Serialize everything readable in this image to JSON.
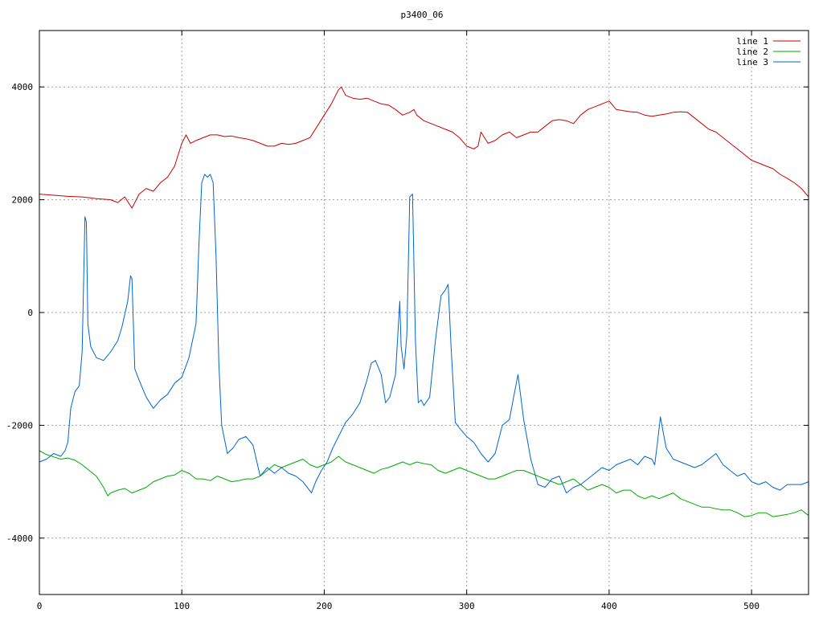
{
  "chart_data": {
    "type": "line",
    "title": "p3400_06",
    "xlabel": "",
    "ylabel": "",
    "xlim": [
      0,
      540
    ],
    "ylim": [
      -5000,
      5000
    ],
    "x_ticks": [
      0,
      100,
      200,
      300,
      400,
      500
    ],
    "y_ticks": [
      -4000,
      -2000,
      0,
      2000,
      4000
    ],
    "x_tick_labels": [
      "0",
      "100",
      "200",
      "300",
      "400",
      "500"
    ],
    "y_tick_labels": [
      "-4000",
      "-2000",
      "0",
      "2000",
      "4000"
    ],
    "grid": true,
    "legend_position": "top-right",
    "series": [
      {
        "name": "line 1",
        "color": "#cc0000",
        "x": [
          0,
          10,
          20,
          30,
          40,
          50,
          55,
          60,
          65,
          70,
          75,
          80,
          85,
          90,
          95,
          100,
          103,
          106,
          110,
          115,
          120,
          125,
          130,
          135,
          140,
          145,
          150,
          155,
          160,
          165,
          170,
          175,
          180,
          185,
          190,
          195,
          200,
          205,
          210,
          212,
          215,
          220,
          225,
          230,
          235,
          240,
          245,
          250,
          255,
          260,
          263,
          265,
          270,
          275,
          280,
          285,
          290,
          295,
          300,
          305,
          308,
          310,
          315,
          320,
          325,
          330,
          335,
          340,
          345,
          350,
          355,
          360,
          365,
          370,
          375,
          380,
          385,
          390,
          395,
          400,
          405,
          410,
          415,
          420,
          425,
          430,
          435,
          440,
          445,
          450,
          455,
          460,
          465,
          470,
          475,
          480,
          485,
          490,
          495,
          500,
          505,
          510,
          515,
          520,
          525,
          530,
          535,
          540
        ],
        "y": [
          2100,
          2080,
          2060,
          2050,
          2020,
          2000,
          1950,
          2050,
          1850,
          2100,
          2200,
          2150,
          2300,
          2400,
          2600,
          3000,
          3150,
          3000,
          3050,
          3100,
          3150,
          3150,
          3120,
          3130,
          3100,
          3080,
          3050,
          3000,
          2950,
          2950,
          3000,
          2980,
          3000,
          3050,
          3100,
          3300,
          3500,
          3700,
          3950,
          4000,
          3850,
          3800,
          3780,
          3800,
          3750,
          3700,
          3680,
          3600,
          3500,
          3550,
          3600,
          3500,
          3400,
          3350,
          3300,
          3250,
          3200,
          3100,
          2950,
          2900,
          2950,
          3200,
          3000,
          3050,
          3150,
          3200,
          3100,
          3150,
          3200,
          3200,
          3300,
          3400,
          3420,
          3400,
          3350,
          3500,
          3600,
          3650,
          3700,
          3750,
          3600,
          3580,
          3560,
          3550,
          3500,
          3480,
          3500,
          3520,
          3550,
          3560,
          3550,
          3450,
          3350,
          3250,
          3200,
          3100,
          3000,
          2900,
          2800,
          2700,
          2650,
          2600,
          2550,
          2450,
          2380,
          2300,
          2200,
          2050
        ]
      },
      {
        "name": "line 2",
        "color": "#00aa00",
        "x": [
          0,
          5,
          10,
          15,
          20,
          25,
          30,
          35,
          40,
          45,
          48,
          50,
          55,
          60,
          65,
          70,
          75,
          80,
          85,
          90,
          95,
          100,
          105,
          110,
          115,
          120,
          125,
          130,
          135,
          140,
          145,
          150,
          155,
          160,
          165,
          170,
          175,
          180,
          185,
          190,
          195,
          200,
          205,
          210,
          215,
          220,
          225,
          230,
          235,
          240,
          245,
          250,
          255,
          260,
          265,
          270,
          275,
          280,
          285,
          290,
          295,
          300,
          305,
          310,
          315,
          320,
          325,
          330,
          335,
          340,
          345,
          350,
          355,
          360,
          365,
          370,
          375,
          380,
          385,
          390,
          395,
          400,
          405,
          410,
          415,
          420,
          425,
          430,
          435,
          440,
          445,
          450,
          455,
          460,
          465,
          470,
          475,
          480,
          485,
          490,
          495,
          500,
          505,
          510,
          515,
          520,
          525,
          530,
          535,
          540
        ],
        "y": [
          -2450,
          -2520,
          -2560,
          -2600,
          -2580,
          -2620,
          -2700,
          -2800,
          -2900,
          -3100,
          -3250,
          -3200,
          -3150,
          -3120,
          -3200,
          -3150,
          -3100,
          -3000,
          -2950,
          -2900,
          -2880,
          -2800,
          -2850,
          -2950,
          -2950,
          -2980,
          -2900,
          -2950,
          -3000,
          -2980,
          -2950,
          -2950,
          -2900,
          -2800,
          -2700,
          -2750,
          -2700,
          -2650,
          -2600,
          -2700,
          -2750,
          -2700,
          -2650,
          -2550,
          -2650,
          -2700,
          -2750,
          -2800,
          -2850,
          -2780,
          -2750,
          -2700,
          -2650,
          -2700,
          -2650,
          -2680,
          -2700,
          -2800,
          -2850,
          -2800,
          -2750,
          -2800,
          -2850,
          -2900,
          -2950,
          -2950,
          -2900,
          -2850,
          -2800,
          -2800,
          -2850,
          -2900,
          -2950,
          -3000,
          -3050,
          -3000,
          -2950,
          -3050,
          -3150,
          -3100,
          -3050,
          -3100,
          -3200,
          -3150,
          -3150,
          -3250,
          -3300,
          -3250,
          -3300,
          -3250,
          -3200,
          -3300,
          -3350,
          -3400,
          -3450,
          -3450,
          -3480,
          -3500,
          -3500,
          -3550,
          -3620,
          -3600,
          -3550,
          -3550,
          -3620,
          -3600,
          -3580,
          -3550,
          -3500,
          -3600
        ]
      },
      {
        "name": "line 3",
        "color": "#0066cc",
        "x": [
          0,
          5,
          10,
          15,
          18,
          20,
          22,
          25,
          28,
          30,
          32,
          33,
          34,
          36,
          40,
          45,
          50,
          55,
          58,
          62,
          64,
          65,
          67,
          70,
          75,
          80,
          85,
          90,
          95,
          100,
          105,
          110,
          112,
          114,
          116,
          118,
          120,
          122,
          124,
          126,
          128,
          132,
          136,
          140,
          145,
          150,
          155,
          160,
          165,
          170,
          175,
          180,
          185,
          188,
          191,
          194,
          198,
          202,
          206,
          210,
          215,
          220,
          225,
          230,
          233,
          236,
          240,
          243,
          246,
          250,
          253,
          254,
          256,
          258,
          260,
          262,
          264,
          266,
          268,
          270,
          274,
          278,
          282,
          285,
          287,
          289,
          292,
          295,
          300,
          305,
          310,
          315,
          320,
          325,
          330,
          333,
          336,
          340,
          345,
          350,
          355,
          360,
          365,
          370,
          375,
          380,
          385,
          390,
          395,
          400,
          405,
          410,
          415,
          420,
          425,
          430,
          432,
          434,
          436,
          440,
          445,
          450,
          455,
          460,
          465,
          470,
          475,
          480,
          485,
          490,
          495,
          500,
          505,
          510,
          515,
          520,
          525,
          530,
          535,
          540
        ],
        "y": [
          -2650,
          -2600,
          -2500,
          -2550,
          -2450,
          -2300,
          -1700,
          -1400,
          -1300,
          -700,
          1700,
          1600,
          -200,
          -600,
          -800,
          -850,
          -700,
          -500,
          -250,
          200,
          650,
          600,
          -1000,
          -1200,
          -1500,
          -1700,
          -1550,
          -1450,
          -1250,
          -1150,
          -800,
          -200,
          1200,
          2300,
          2450,
          2400,
          2450,
          2300,
          1000,
          -900,
          -2000,
          -2500,
          -2400,
          -2250,
          -2200,
          -2350,
          -2900,
          -2750,
          -2850,
          -2750,
          -2850,
          -2900,
          -3000,
          -3100,
          -3200,
          -3000,
          -2800,
          -2650,
          -2400,
          -2200,
          -1950,
          -1800,
          -1600,
          -1200,
          -900,
          -850,
          -1100,
          -1600,
          -1500,
          -1100,
          200,
          -600,
          -1000,
          -400,
          2050,
          2100,
          -500,
          -1600,
          -1550,
          -1650,
          -1500,
          -500,
          300,
          400,
          500,
          -600,
          -1950,
          -2050,
          -2200,
          -2300,
          -2500,
          -2650,
          -2500,
          -2000,
          -1900,
          -1500,
          -1100,
          -1900,
          -2600,
          -3050,
          -3100,
          -2950,
          -2900,
          -3200,
          -3100,
          -3050,
          -2950,
          -2850,
          -2750,
          -2800,
          -2700,
          -2650,
          -2600,
          -2700,
          -2550,
          -2600,
          -2700,
          -2300,
          -1850,
          -2400,
          -2600,
          -2650,
          -2700,
          -2750,
          -2700,
          -2600,
          -2500,
          -2700,
          -2800,
          -2900,
          -2850,
          -3000,
          -3050,
          -3000,
          -3100,
          -3150,
          -3050,
          -3050,
          -3050,
          -3000
        ]
      }
    ]
  }
}
